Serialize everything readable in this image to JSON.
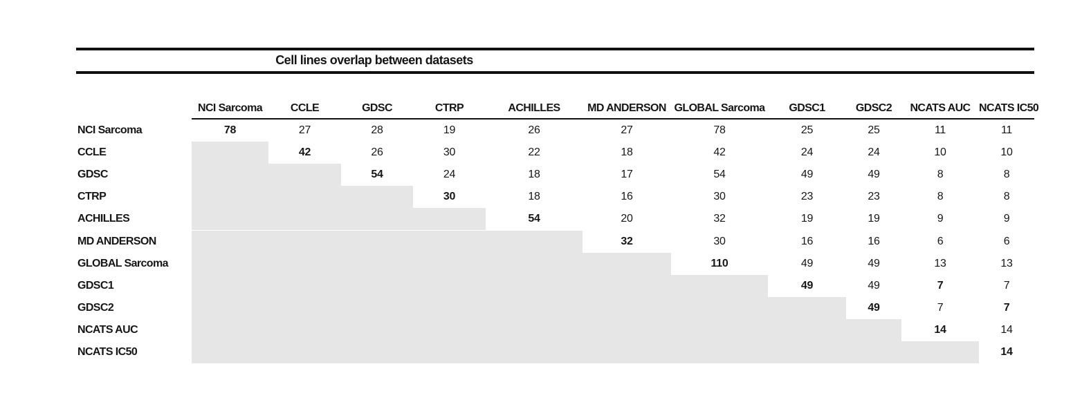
{
  "title": "Cell lines overlap between datasets",
  "datasets": [
    "NCI Sarcoma",
    "CCLE",
    "GDSC",
    "CTRP",
    "ACHILLES",
    "MD ANDERSON",
    "GLOBAL Sarcoma",
    "GDSC1",
    "GDSC2",
    "NCATS AUC",
    "NCATS IC50"
  ],
  "matrix": {
    "rows": [
      {
        "label": "NCI Sarcoma",
        "values": [
          78,
          27,
          28,
          19,
          26,
          27,
          78,
          25,
          25,
          11,
          11
        ],
        "bold_cols": [
          0
        ]
      },
      {
        "label": "CCLE",
        "values": [
          null,
          42,
          26,
          30,
          22,
          18,
          42,
          24,
          24,
          10,
          10
        ],
        "bold_cols": [
          1
        ]
      },
      {
        "label": "GDSC",
        "values": [
          null,
          null,
          54,
          24,
          18,
          17,
          54,
          49,
          49,
          8,
          8
        ],
        "bold_cols": [
          2
        ]
      },
      {
        "label": "CTRP",
        "values": [
          null,
          null,
          null,
          30,
          18,
          16,
          30,
          23,
          23,
          8,
          8
        ],
        "bold_cols": [
          3
        ]
      },
      {
        "label": "ACHILLES",
        "values": [
          null,
          null,
          null,
          null,
          54,
          20,
          32,
          19,
          19,
          9,
          9
        ],
        "bold_cols": [
          4
        ]
      },
      {
        "label": "MD ANDERSON",
        "values": [
          null,
          null,
          null,
          null,
          null,
          32,
          30,
          16,
          16,
          6,
          6
        ],
        "bold_cols": [
          5
        ]
      },
      {
        "label": "GLOBAL Sarcoma",
        "values": [
          null,
          null,
          null,
          null,
          null,
          null,
          110,
          49,
          49,
          13,
          13
        ],
        "bold_cols": [
          6
        ]
      },
      {
        "label": "GDSC1",
        "values": [
          null,
          null,
          null,
          null,
          null,
          null,
          null,
          49,
          49,
          7,
          7
        ],
        "bold_cols": [
          7,
          9
        ]
      },
      {
        "label": "GDSC2",
        "values": [
          null,
          null,
          null,
          null,
          null,
          null,
          null,
          null,
          49,
          7,
          7
        ],
        "bold_cols": [
          8,
          10
        ]
      },
      {
        "label": "NCATS AUC",
        "values": [
          null,
          null,
          null,
          null,
          null,
          null,
          null,
          null,
          null,
          14,
          14
        ],
        "bold_cols": [
          9
        ]
      },
      {
        "label": "NCATS IC50",
        "values": [
          null,
          null,
          null,
          null,
          null,
          null,
          null,
          null,
          null,
          null,
          14
        ],
        "bold_cols": [
          10
        ]
      }
    ]
  },
  "colors": {
    "shade": "#e7e6e6",
    "rule": "#101010",
    "text": "#161616"
  }
}
